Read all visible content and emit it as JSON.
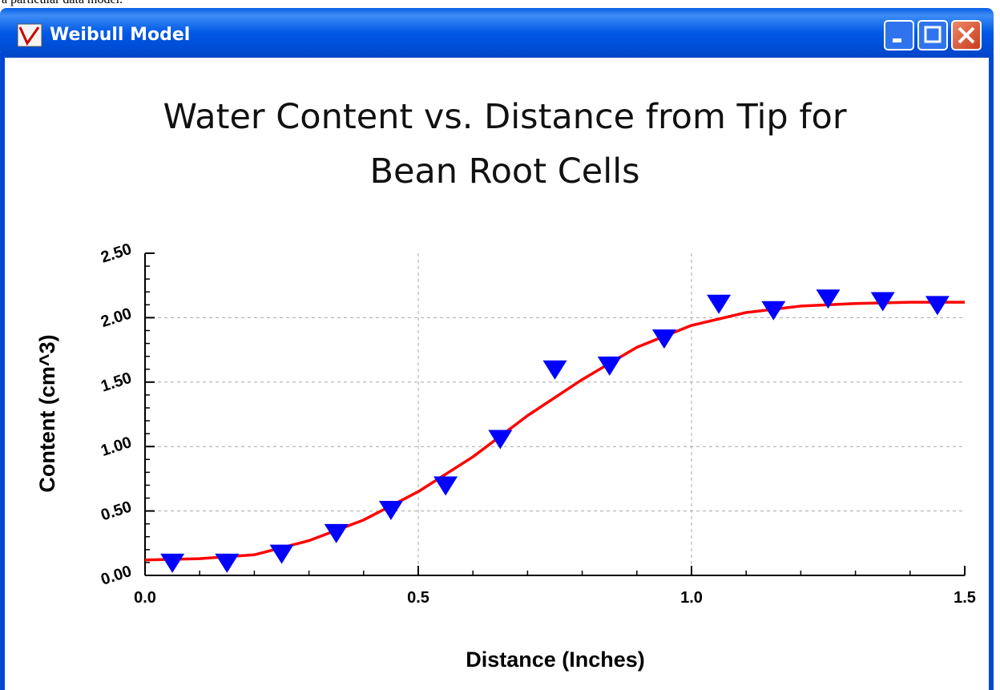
{
  "page_text": "a particular data model.",
  "window": {
    "title": "Weibull Model"
  },
  "chart_data": {
    "type": "scatter",
    "title": [
      "Water Content vs. Distance from Tip for",
      "Bean Root Cells"
    ],
    "xlabel": "Distance (Inches)",
    "ylabel": "Content (cm^3)",
    "xlim": [
      0,
      1.5
    ],
    "ylim": [
      0,
      2.5
    ],
    "xticks": [
      {
        "value": 0,
        "label": "0.0"
      },
      {
        "value": 0.5,
        "label": "0.5"
      },
      {
        "value": 1,
        "label": "1.0"
      },
      {
        "value": 1.5,
        "label": "1.5"
      }
    ],
    "yticks": [
      {
        "value": 0,
        "label": "0.00"
      },
      {
        "value": 0.5,
        "label": "0.50"
      },
      {
        "value": 1,
        "label": "1.00"
      },
      {
        "value": 1.5,
        "label": "1.50"
      },
      {
        "value": 2,
        "label": "2.00"
      },
      {
        "value": 2.5,
        "label": "2.50"
      }
    ],
    "xminorticks": [
      0.1,
      0.2,
      0.3,
      0.4,
      0.6,
      0.7,
      0.8,
      0.9,
      1.1,
      1.2,
      1.3,
      1.4
    ],
    "yminorticks": [
      0.1,
      0.2,
      0.3,
      0.4,
      0.6,
      0.7,
      0.8,
      0.9,
      1.1,
      1.2,
      1.3,
      1.4,
      1.6,
      1.7,
      1.8,
      1.9,
      2.1,
      2.2,
      2.3,
      2.4
    ],
    "grid": true,
    "series": [
      {
        "kind": "marker",
        "marker": "triangle-down",
        "color": "#0000ff",
        "x": [
          0.05,
          0.15,
          0.25,
          0.35,
          0.45,
          0.55,
          0.65,
          0.75,
          0.85,
          0.95,
          1.05,
          1.15,
          1.25,
          1.35,
          1.45
        ],
        "values": [
          0.1,
          0.1,
          0.17,
          0.33,
          0.51,
          0.7,
          1.06,
          1.6,
          1.63,
          1.84,
          2.11,
          2.06,
          2.15,
          2.13,
          2.1
        ]
      },
      {
        "kind": "line",
        "color": "#ff0000",
        "x": [
          0,
          0.1,
          0.2,
          0.3,
          0.4,
          0.5,
          0.6,
          0.7,
          0.8,
          0.9,
          1.0,
          1.1,
          1.2,
          1.3,
          1.4,
          1.5
        ],
        "values": [
          0.12,
          0.13,
          0.16,
          0.27,
          0.43,
          0.65,
          0.92,
          1.24,
          1.52,
          1.77,
          1.94,
          2.04,
          2.09,
          2.11,
          2.12,
          2.12
        ]
      }
    ]
  }
}
